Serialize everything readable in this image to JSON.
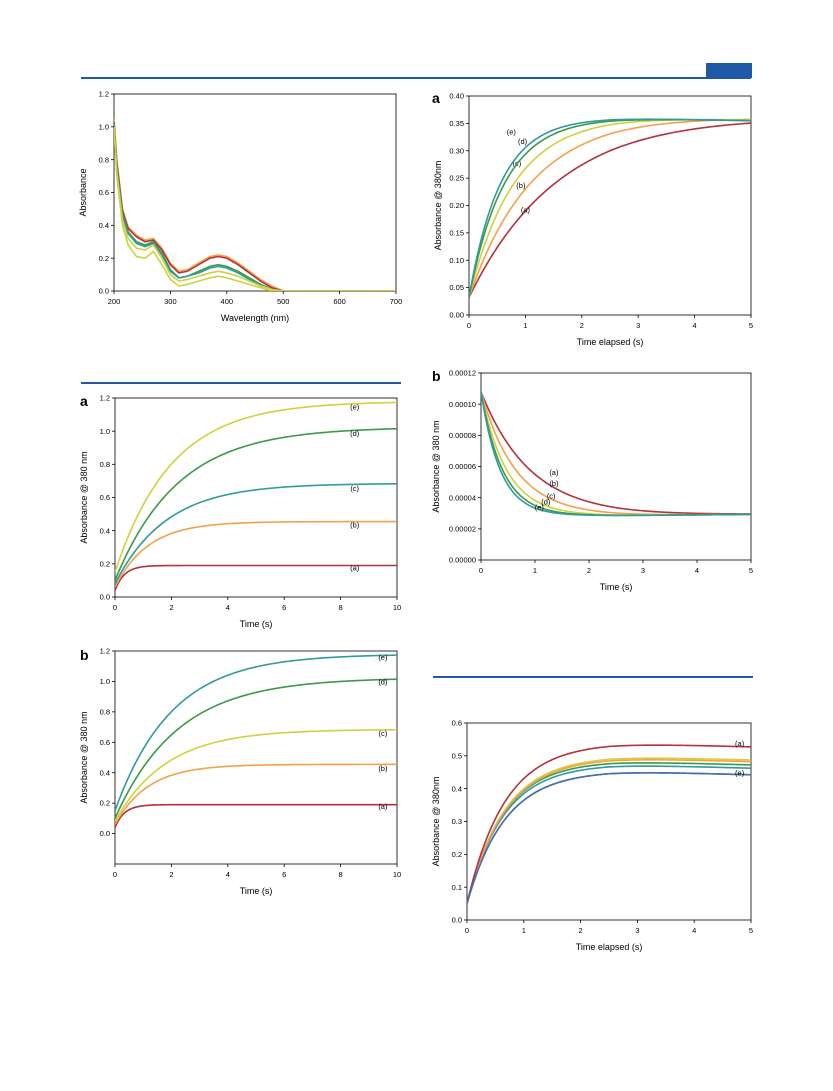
{
  "colors": {
    "a": "#b5323a",
    "b": "#f7a04a",
    "c": "#d1d13d",
    "d": "#3a9a48",
    "e": "#2f9aa0",
    "blue": "#4a6fb0",
    "rule": "#1f5aa6"
  },
  "chart_data": [
    {
      "type": "line",
      "panel": "",
      "xlabel": "Wavelength (nm)",
      "ylabel": "Absorbance",
      "xlim": [
        200,
        700
      ],
      "ylim": [
        0,
        1.2
      ],
      "xticks": [
        200,
        300,
        400,
        500,
        600,
        700
      ],
      "yticks": [
        0.0,
        0.2,
        0.4,
        0.6,
        0.8,
        1.0,
        1.2
      ],
      "series": [
        {
          "color": "#f7a04a",
          "x": [
            200,
            205,
            215,
            225,
            240,
            255,
            270,
            285,
            300,
            315,
            330,
            350,
            370,
            385,
            400,
            420,
            440,
            460,
            480,
            500,
            700
          ],
          "y": [
            1.05,
            0.8,
            0.5,
            0.39,
            0.34,
            0.31,
            0.32,
            0.26,
            0.17,
            0.12,
            0.13,
            0.17,
            0.21,
            0.22,
            0.21,
            0.17,
            0.12,
            0.07,
            0.03,
            0.0,
            0.0
          ]
        },
        {
          "color": "#b5323a",
          "x": [
            200,
            205,
            215,
            225,
            240,
            255,
            270,
            285,
            300,
            315,
            330,
            350,
            370,
            385,
            400,
            420,
            440,
            460,
            480,
            500,
            700
          ],
          "y": [
            1.03,
            0.78,
            0.49,
            0.38,
            0.33,
            0.3,
            0.31,
            0.25,
            0.16,
            0.11,
            0.12,
            0.16,
            0.2,
            0.21,
            0.2,
            0.16,
            0.11,
            0.06,
            0.02,
            0.0,
            0.0
          ]
        },
        {
          "color": "#3a9a48",
          "x": [
            200,
            205,
            215,
            225,
            240,
            255,
            270,
            285,
            300,
            315,
            330,
            350,
            370,
            385,
            400,
            420,
            440,
            460,
            480,
            500,
            700
          ],
          "y": [
            1.02,
            0.76,
            0.47,
            0.36,
            0.3,
            0.28,
            0.3,
            0.23,
            0.13,
            0.08,
            0.09,
            0.12,
            0.15,
            0.16,
            0.15,
            0.12,
            0.08,
            0.04,
            0.01,
            0.0,
            0.0
          ]
        },
        {
          "color": "#2f9aa0",
          "x": [
            200,
            205,
            215,
            225,
            240,
            255,
            270,
            285,
            300,
            315,
            330,
            350,
            370,
            385,
            400,
            420,
            440,
            460,
            480,
            500,
            700
          ],
          "y": [
            1.02,
            0.75,
            0.46,
            0.35,
            0.29,
            0.27,
            0.29,
            0.22,
            0.12,
            0.08,
            0.09,
            0.11,
            0.14,
            0.15,
            0.14,
            0.11,
            0.07,
            0.04,
            0.01,
            0.0,
            0.0
          ]
        },
        {
          "color": "#d1d13d",
          "x": [
            200,
            205,
            215,
            225,
            240,
            255,
            270,
            285,
            300,
            315,
            330,
            350,
            370,
            385,
            400,
            420,
            440,
            460,
            480,
            500,
            700
          ],
          "y": [
            1.0,
            0.72,
            0.43,
            0.32,
            0.26,
            0.25,
            0.28,
            0.2,
            0.1,
            0.06,
            0.07,
            0.09,
            0.11,
            0.12,
            0.11,
            0.09,
            0.06,
            0.03,
            0.01,
            0.0,
            0.0
          ]
        },
        {
          "color": "#d1d13d",
          "x": [
            200,
            205,
            215,
            225,
            240,
            255,
            270,
            285,
            300,
            315,
            330,
            350,
            370,
            385,
            400,
            420,
            440,
            460,
            480,
            500,
            700
          ],
          "y": [
            1.0,
            0.7,
            0.4,
            0.28,
            0.21,
            0.2,
            0.24,
            0.16,
            0.07,
            0.03,
            0.04,
            0.06,
            0.08,
            0.09,
            0.08,
            0.06,
            0.04,
            0.02,
            0.0,
            0.0,
            0.0
          ]
        }
      ]
    },
    {
      "type": "line",
      "panel": "a",
      "xlabel": "Time elapsed (s)",
      "ylabel": "Absorbance @ 380nm",
      "xlim": [
        0,
        5
      ],
      "ylim": [
        0,
        0.4
      ],
      "xticks": [
        0,
        1,
        2,
        3,
        4,
        5
      ],
      "yticks": [
        0.0,
        0.05,
        0.1,
        0.15,
        0.2,
        0.25,
        0.3,
        0.35,
        0.4
      ],
      "tick_decimals": 2,
      "model": "exp_rise",
      "series": [
        {
          "label": "(a)",
          "color": "#b5323a",
          "y0": 0.032,
          "yinf": 0.37,
          "k": 0.63,
          "label_at": [
            1.0,
            0.187
          ]
        },
        {
          "label": "(b)",
          "color": "#f7a04a",
          "y0": 0.032,
          "yinf": 0.366,
          "k": 0.9,
          "label_at": [
            0.92,
            0.232
          ]
        },
        {
          "label": "(c)",
          "color": "#d1d13d",
          "y0": 0.032,
          "yinf": 0.362,
          "k": 1.25,
          "label_at": [
            0.85,
            0.272
          ]
        },
        {
          "label": "(d)",
          "color": "#3a9a48",
          "y0": 0.032,
          "yinf": 0.36,
          "k": 1.6,
          "label_at": [
            0.95,
            0.312
          ]
        },
        {
          "label": "(e)",
          "color": "#2f9aa0",
          "y0": 0.032,
          "yinf": 0.36,
          "k": 1.8,
          "label_at": [
            0.75,
            0.33
          ]
        }
      ],
      "tail_slope": -0.002
    },
    {
      "type": "line",
      "panel": "a",
      "xlabel": "Time (s)",
      "ylabel": "Absorbance @ 380 nm",
      "xlim": [
        0,
        10
      ],
      "ylim": [
        0,
        1.2
      ],
      "xticks": [
        0,
        2,
        4,
        6,
        8,
        10
      ],
      "yticks": [
        0.0,
        0.2,
        0.4,
        0.6,
        0.8,
        1.0,
        1.2
      ],
      "tick_decimals": 1,
      "model": "exp_rise",
      "series": [
        {
          "label": "(a)",
          "color": "#b5323a",
          "y0": 0.04,
          "yinf": 0.19,
          "k": 3.0,
          "label_at": [
            8.5,
            0.16
          ]
        },
        {
          "label": "(b)",
          "color": "#f7a04a",
          "y0": 0.06,
          "yinf": 0.455,
          "k": 0.85,
          "label_at": [
            8.5,
            0.42
          ]
        },
        {
          "label": "(c)",
          "color": "#2f9aa0",
          "y0": 0.08,
          "yinf": 0.685,
          "k": 0.55,
          "label_at": [
            8.5,
            0.64
          ]
        },
        {
          "label": "(d)",
          "color": "#3a9a48",
          "y0": 0.1,
          "yinf": 1.025,
          "k": 0.45,
          "label_at": [
            8.5,
            0.97
          ]
        },
        {
          "label": "(e)",
          "color": "#d1d13d",
          "y0": 0.15,
          "yinf": 1.18,
          "k": 0.5,
          "label_at": [
            8.5,
            1.13
          ]
        }
      ]
    },
    {
      "type": "line",
      "panel": "b",
      "xlabel": "Time (s)",
      "ylabel": "Absorbance @ 380 nm",
      "xlim": [
        0,
        5
      ],
      "ylim": [
        0,
        0.00012
      ],
      "xticks": [
        0,
        1,
        2,
        3,
        4,
        5
      ],
      "yticks": [
        0.0,
        2e-05,
        4e-05,
        6e-05,
        8e-05,
        0.0001,
        0.00012
      ],
      "tick_decimals": 5,
      "model": "exp_decay",
      "series": [
        {
          "label": "(a)",
          "color": "#b5323a",
          "y0": 0.000108,
          "yinf": 2.85e-05,
          "k": 1.1,
          "label_at": [
            1.35,
            5.45e-05
          ]
        },
        {
          "label": "(b)",
          "color": "#f7a04a",
          "y0": 0.000108,
          "yinf": 2.85e-05,
          "k": 1.55,
          "label_at": [
            1.35,
            4.75e-05
          ]
        },
        {
          "label": "(c)",
          "color": "#d1d13d",
          "y0": 0.000108,
          "yinf": 2.85e-05,
          "k": 2.1,
          "label_at": [
            1.3,
            3.95e-05
          ]
        },
        {
          "label": "(d)",
          "color": "#3a9a48",
          "y0": 0.000108,
          "yinf": 2.85e-05,
          "k": 2.5,
          "label_at": [
            1.2,
            3.55e-05
          ]
        },
        {
          "label": "(e)",
          "color": "#2f9aa0",
          "y0": 0.000108,
          "yinf": 2.85e-05,
          "k": 2.8,
          "label_at": [
            1.08,
            3.2e-05
          ]
        }
      ],
      "tail_slope": 3e-07
    },
    {
      "type": "line",
      "panel": "b",
      "xlabel": "Time (s)",
      "ylabel": "Absorbance @ 380 nm",
      "xlim": [
        0,
        10
      ],
      "ylim": [
        -0.2,
        1.2
      ],
      "xticks": [
        0,
        2,
        4,
        6,
        8,
        10
      ],
      "yticks": [
        0.0,
        0.2,
        0.4,
        0.6,
        0.8,
        1.0,
        1.2
      ],
      "tick_decimals": 1,
      "model": "exp_rise",
      "series": [
        {
          "label": "(a)",
          "color": "#b5323a",
          "y0": 0.04,
          "yinf": 0.19,
          "k": 3.0,
          "label_at": [
            9.5,
            0.16
          ]
        },
        {
          "label": "(b)",
          "color": "#f7a04a",
          "y0": 0.06,
          "yinf": 0.455,
          "k": 0.85,
          "label_at": [
            9.5,
            0.41
          ]
        },
        {
          "label": "(c)",
          "color": "#d1d13d",
          "y0": 0.08,
          "yinf": 0.685,
          "k": 0.55,
          "label_at": [
            9.5,
            0.64
          ]
        },
        {
          "label": "(d)",
          "color": "#3a9a48",
          "y0": 0.1,
          "yinf": 1.025,
          "k": 0.45,
          "label_at": [
            9.5,
            0.98
          ]
        },
        {
          "label": "(e)",
          "color": "#2f9aa0",
          "y0": 0.15,
          "yinf": 1.18,
          "k": 0.5,
          "label_at": [
            9.5,
            1.14
          ]
        }
      ]
    },
    {
      "type": "line",
      "panel": "",
      "xlabel": "Time elapsed (s)",
      "ylabel": "Absorbance @ 380nm",
      "xlim": [
        0,
        5
      ],
      "ylim": [
        0,
        0.6
      ],
      "xticks": [
        0,
        1,
        2,
        3,
        4,
        5
      ],
      "yticks": [
        0.0,
        0.1,
        0.2,
        0.3,
        0.4,
        0.5,
        0.6
      ],
      "tick_decimals": 1,
      "model": "exp_rise",
      "series": [
        {
          "label": "",
          "color": "#4a6fb0",
          "y0": 0.05,
          "yinf": 0.455,
          "k": 1.5,
          "label_at": null
        },
        {
          "label": "",
          "color": "#2f9aa0",
          "y0": 0.05,
          "yinf": 0.475,
          "k": 1.55,
          "label_at": null
        },
        {
          "label": "",
          "color": "#3a9a48",
          "y0": 0.05,
          "yinf": 0.485,
          "k": 1.55,
          "label_at": null
        },
        {
          "label": "",
          "color": "#d1d13d",
          "y0": 0.05,
          "yinf": 0.5,
          "k": 1.5,
          "label_at": null
        },
        {
          "label": "",
          "color": "#f7a04a",
          "y0": 0.05,
          "yinf": 0.495,
          "k": 1.5,
          "label_at": null
        },
        {
          "label": "(a)",
          "color": "#b5323a",
          "y0": 0.05,
          "yinf": 0.54,
          "k": 1.5,
          "label_at": [
            4.8,
            0.53
          ]
        },
        {
          "label": "(e)",
          "color": "#4a6fb0",
          "y0": 0.05,
          "yinf": 0.455,
          "k": 1.5,
          "label_at": [
            4.8,
            0.44
          ]
        }
      ],
      "tail_slope": -0.005
    }
  ]
}
